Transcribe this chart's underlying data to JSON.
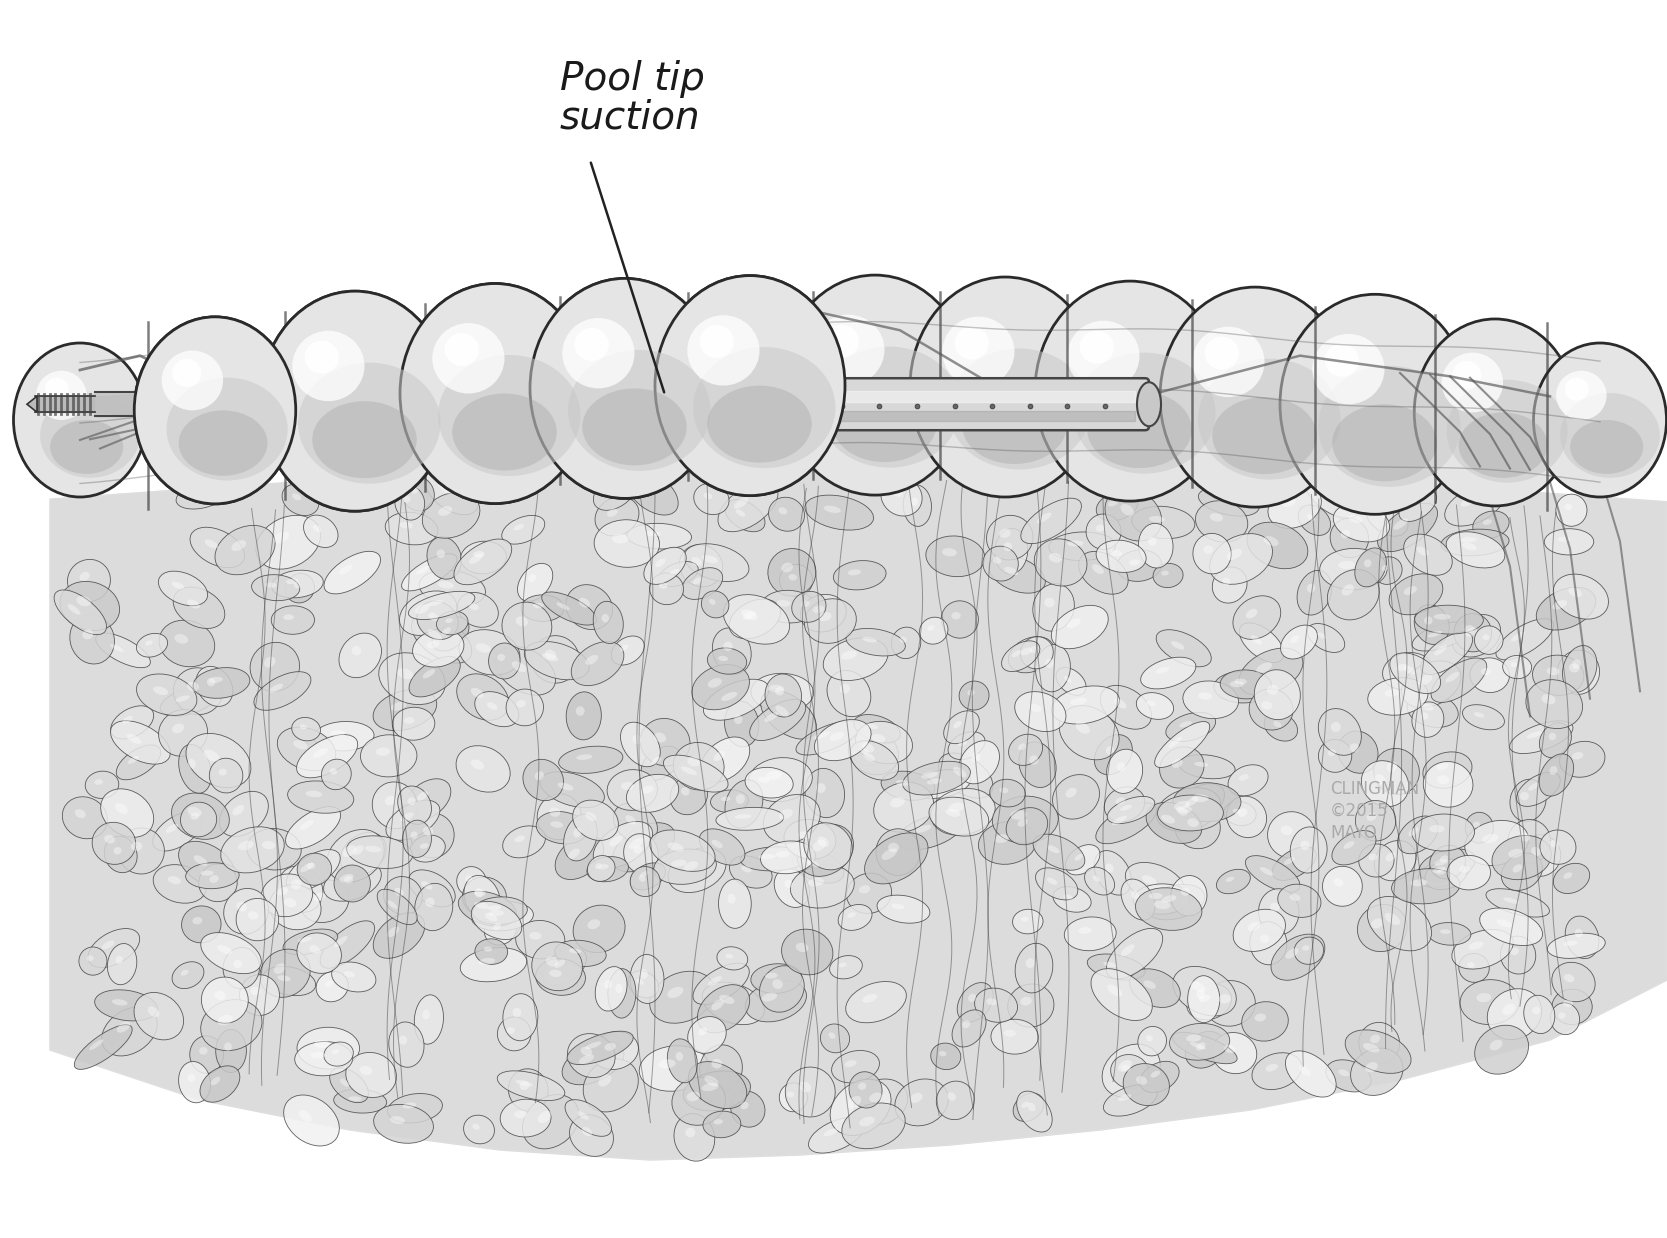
{
  "label_text_line1": "Pool tip",
  "label_text_line2": "suction",
  "copyright_text": "CLINGMAN\n©2015\nMAYO",
  "bg_color": "#ffffff",
  "colon_light": "#e5e5e5",
  "colon_mid": "#c8c8c8",
  "colon_dark": "#999999",
  "colon_outline": "#2a2a2a",
  "mesentery_fill": "#d2d2d2",
  "mesentery_cell_fill": "#e2e2e2",
  "mesentery_cell_edge": "#555555",
  "tube_fill": "#d5d5d5",
  "tube_edge": "#444444",
  "text_color": "#1a1a1a",
  "copyright_color": "#aaaaaa",
  "annotation_font_size": 28,
  "copyright_font_size": 12
}
